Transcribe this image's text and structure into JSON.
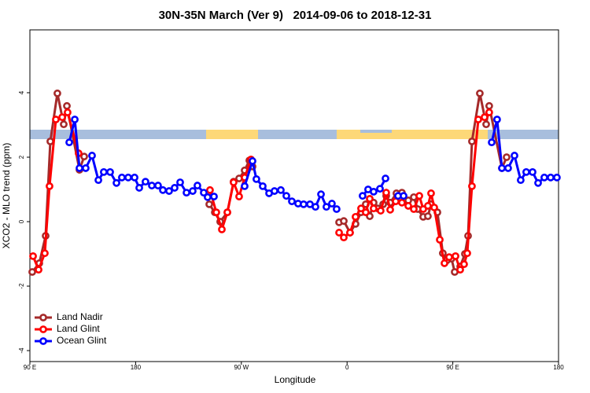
{
  "chart_data": {
    "type": "line",
    "title": "30N-35N March (Ver 9)   2014-09-06 to 2018-12-31",
    "xlabel": "Longitude",
    "ylabel": "XCO2 - MLO trend (ppm)",
    "xlim": [
      90,
      540
    ],
    "ylim": [
      -4.34,
      5.95
    ],
    "xticks": [
      {
        "value": 90,
        "label": "90 E"
      },
      180,
      {
        "value": 270,
        "label": "90 W"
      },
      {
        "value": 360,
        "label": "0"
      },
      {
        "value": 450,
        "label": "90 E"
      },
      {
        "value": 540,
        "label": "180"
      }
    ],
    "yticks": [
      -4,
      -2,
      0,
      2,
      4
    ],
    "legend": "bottom-left",
    "series": [
      {
        "name": "Land Nadir",
        "color": "#a52a2a",
        "x": [
          92.0,
          98.0,
          103.4,
          107.4,
          113.4,
          118.8,
          121.5,
          132.2,
          136.2,
          null,
          242.7,
          247.4,
          252.0,
          258.1,
          263.4,
          268.1,
          272.8,
          276.8,
          279.5,
          null,
          353.2,
          357.2,
          362.5,
          367.2,
          371.9,
          375.9,
          379.3,
          382.6,
          386.0,
          390.7,
          393.3,
          396.7,
          402.0,
          406.7,
          412.1,
          416.8,
          420.1,
          424.8,
          428.8,
          431.5,
          436.9,
          441.5,
          444.9,
          448.9,
          451.6,
          456.3,
          460.3,
          463.0,
          466.3,
          473.0,
          478.4,
          481.0,
          491.8,
          495.8
        ],
        "values": [
          -1.56,
          -1.29,
          -0.44,
          2.49,
          3.98,
          3.02,
          3.59,
          1.61,
          2.02,
          null,
          0.54,
          0.29,
          0,
          0.29,
          1.24,
          1.34,
          1.59,
          1.9,
          1.71,
          null,
          -0.02,
          0.02,
          -0.34,
          -0.07,
          0.29,
          0.54,
          0.17,
          0.59,
          0.41,
          0.54,
          0.8,
          0.59,
          0.88,
          0.9,
          0.66,
          0.76,
          0.39,
          0.15,
          0.17,
          0.54,
          0.29,
          -0.98,
          -1.2,
          -1.15,
          -1.56,
          -1.39,
          -1.0,
          -0.44,
          2.49,
          3.98,
          3.02,
          3.59,
          1.66,
          2.0
        ]
      },
      {
        "name": "Land Glint",
        "color": "#ff0000",
        "x": [
          92.7,
          97.4,
          102.7,
          106.7,
          112.1,
          117.5,
          122.1,
          131.5,
          null,
          243.3,
          248.7,
          253.4,
          258.1,
          263.4,
          268.1,
          272.8,
          278.2,
          null,
          353.2,
          357.2,
          362.5,
          367.2,
          371.9,
          375.9,
          379.3,
          382.6,
          388.6,
          393.3,
          396.7,
          401.4,
          406.7,
          412.1,
          416.8,
          421.5,
          424.8,
          428.8,
          431.5,
          434.2,
          438.9,
          442.9,
          446.9,
          452.3,
          456.3,
          459.6,
          462.3,
          466.3,
          471.7,
          477.0,
          481.0
        ],
        "values": [
          -1.07,
          -1.49,
          -0.98,
          1.1,
          3.17,
          3.24,
          3.39,
          2.12,
          null,
          0.98,
          0.29,
          -0.24,
          0.29,
          1.22,
          0.78,
          1.37,
          1.93,
          null,
          -0.34,
          -0.49,
          -0.34,
          0.15,
          0.41,
          0.29,
          0.71,
          0.41,
          0.34,
          0.9,
          0.37,
          0.63,
          0.59,
          0.49,
          0.39,
          0.8,
          0.39,
          0.49,
          0.88,
          0.44,
          -0.56,
          -1.29,
          -1.1,
          -1.07,
          -1.49,
          -1.32,
          -0.98,
          1.1,
          3.17,
          3.24,
          3.39
        ]
      },
      {
        "name": "Ocean Glint",
        "color": "#0000ff",
        "x": [
          123.5,
          128.2,
          132.2,
          137.5,
          142.9,
          148.3,
          152.9,
          158.3,
          163.7,
          168.3,
          173.7,
          179.1,
          183.1,
          188.4,
          193.8,
          199.1,
          203.2,
          208.5,
          213.2,
          217.9,
          223.3,
          228.6,
          232.6,
          238.0,
          241.3,
          246.7,
          null,
          272.8,
          279.5,
          282.8,
          288.2,
          293.6,
          298.2,
          303.6,
          308.3,
          313.0,
          318.3,
          323.0,
          328.4,
          333.1,
          337.8,
          342.4,
          347.1,
          351.1,
          null,
          373.2,
          377.9,
          382.6,
          388.0,
          392.7,
          null,
          403.4,
          408.1,
          null,
          483.1,
          487.7,
          491.8,
          497.1,
          502.5,
          507.8,
          512.5,
          517.9,
          522.6,
          527.9,
          533.3,
          538.6
        ],
        "values": [
          2.46,
          3.17,
          1.66,
          1.66,
          2.05,
          1.29,
          1.54,
          1.54,
          1.2,
          1.37,
          1.37,
          1.37,
          1.05,
          1.24,
          1.12,
          1.12,
          0.98,
          0.95,
          1.05,
          1.22,
          0.9,
          0.95,
          1.12,
          0.9,
          0.76,
          0.78,
          null,
          1.1,
          1.88,
          1.32,
          1.1,
          0.88,
          0.95,
          0.98,
          0.8,
          0.63,
          0.56,
          0.54,
          0.54,
          0.46,
          0.85,
          0.46,
          0.56,
          0.39,
          null,
          0.8,
          1.0,
          0.93,
          1.02,
          1.34,
          null,
          0.8,
          0.8,
          null,
          2.46,
          3.17,
          1.66,
          1.66,
          2.05,
          1.29,
          1.54,
          1.54,
          1.2,
          1.37,
          1.37,
          1.37
        ]
      }
    ]
  }
}
